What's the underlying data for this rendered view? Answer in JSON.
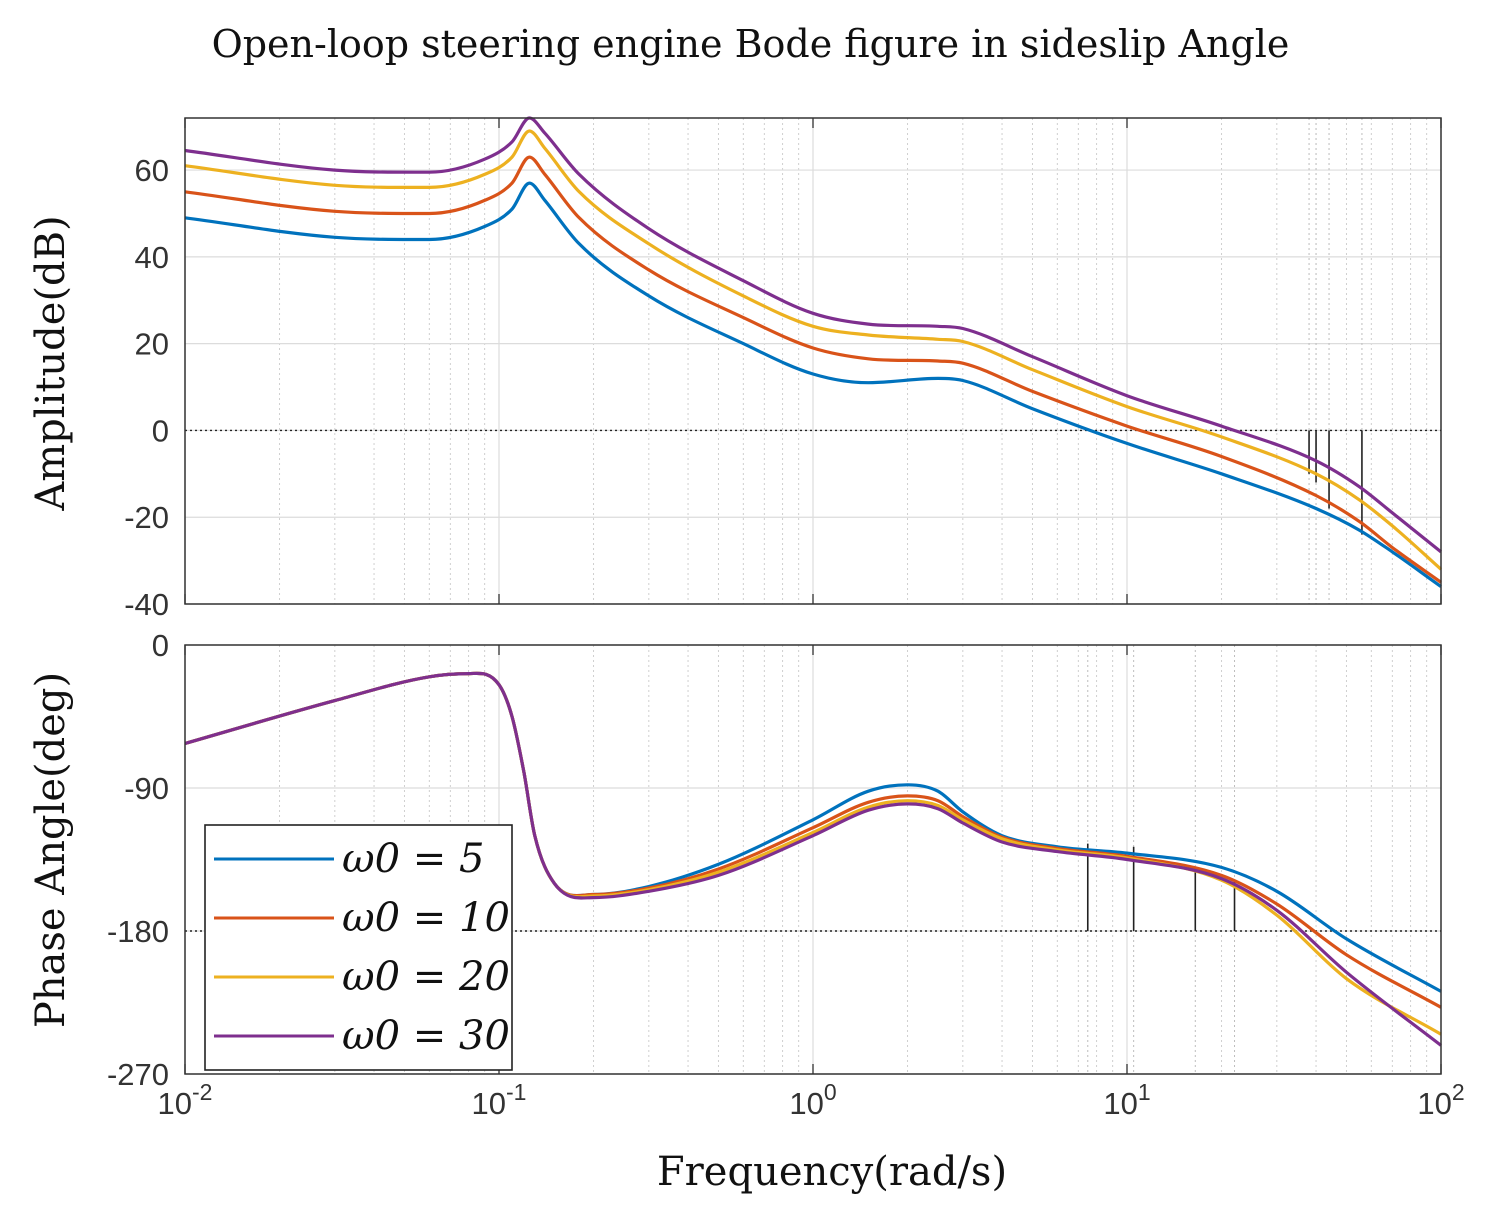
{
  "chart_data": {
    "type": "line",
    "title": "Open-loop steering engine Bode figure in sideslip Angle",
    "xlabel": "Frequency(rad/s)",
    "xscale": "log",
    "xlim": [
      0.01,
      100
    ],
    "x_ticks": [
      {
        "value": 0.01,
        "base": "10",
        "exp": "-2"
      },
      {
        "value": 0.1,
        "base": "10",
        "exp": "-1"
      },
      {
        "value": 1,
        "base": "10",
        "exp": "0"
      },
      {
        "value": 10,
        "base": "10",
        "exp": "1"
      },
      {
        "value": 100,
        "base": "10",
        "exp": "2"
      }
    ],
    "grid": true,
    "legend": {
      "location": "bottom-left of phase panel"
    },
    "colors": {
      "w5": "#0072BD",
      "w10": "#D95319",
      "w20": "#EDB120",
      "w30": "#7E2F8E"
    },
    "panels": [
      {
        "name": "magnitude",
        "ylabel": "Amplitude(dB)",
        "ylim": [
          -40,
          72
        ],
        "yticks": [
          "60",
          "40",
          "20",
          "0",
          "-20",
          "-40"
        ],
        "ytick_values": [
          60,
          40,
          20,
          0,
          -20,
          -40
        ],
        "reference_line": 0,
        "series": [
          {
            "name": "ω0 = 5",
            "color_key": "w5",
            "x": [
              0.01,
              0.03,
              0.06,
              0.09,
              0.11,
              0.125,
              0.14,
              0.18,
              0.3,
              0.6,
              1,
              1.5,
              2.5,
              3,
              5,
              10,
              20,
              40,
              55,
              70,
              100
            ],
            "y": [
              49,
              44.5,
              44,
              47,
              51,
              57,
              53,
              43,
              31,
              20,
              13,
              11,
              12,
              11.5,
              5,
              -3,
              -10,
              -18,
              -23,
              -28,
              -36
            ]
          },
          {
            "name": "ω0 = 10",
            "color_key": "w10",
            "x": [
              0.01,
              0.03,
              0.06,
              0.09,
              0.11,
              0.125,
              0.14,
              0.18,
              0.3,
              0.6,
              1,
              1.5,
              2.5,
              3,
              5,
              10,
              20,
              40,
              55,
              70,
              100
            ],
            "y": [
              55,
              50.5,
              50,
              53,
              57,
              63,
              59,
              49,
              37,
              26,
              19,
              16.5,
              16,
              15.5,
              9,
              1,
              -6,
              -15,
              -21,
              -27,
              -35
            ]
          },
          {
            "name": "ω0 = 20",
            "color_key": "w20",
            "x": [
              0.01,
              0.03,
              0.06,
              0.09,
              0.11,
              0.125,
              0.14,
              0.18,
              0.3,
              0.6,
              1,
              1.5,
              2.5,
              3,
              5,
              10,
              20,
              40,
              55,
              70,
              100
            ],
            "y": [
              61,
              56.5,
              56,
              59,
              63,
              69,
              65,
              55,
              43,
              31,
              24,
              22,
              21,
              20.5,
              14,
              5.5,
              -1.5,
              -10,
              -16,
              -22,
              -32
            ]
          },
          {
            "name": "ω0 = 30",
            "color_key": "w30",
            "x": [
              0.01,
              0.03,
              0.06,
              0.09,
              0.11,
              0.125,
              0.14,
              0.18,
              0.3,
              0.6,
              1,
              1.5,
              2.5,
              3,
              5,
              10,
              20,
              40,
              55,
              70,
              100
            ],
            "y": [
              64.5,
              60,
              59.5,
              62.5,
              66.5,
              72,
              68.5,
              59,
              46.5,
              34.5,
              27,
              24.5,
              24,
              23.5,
              17,
              8,
              1,
              -7,
              -13,
              -19,
              -28
            ]
          }
        ],
        "margin_markers": [
          {
            "x": 38,
            "y1": 0,
            "y2": -10
          },
          {
            "x": 40,
            "y1": 0,
            "y2": -12
          },
          {
            "x": 44,
            "y1": 0,
            "y2": -18
          },
          {
            "x": 56,
            "y1": 0,
            "y2": -24
          }
        ]
      },
      {
        "name": "phase",
        "ylabel": "Phase Angle(deg)",
        "ylim": [
          -270,
          0
        ],
        "yticks": [
          "0",
          "-90",
          "-180",
          "-270"
        ],
        "ytick_values": [
          0,
          -90,
          -180,
          -270
        ],
        "reference_line": -180,
        "series": [
          {
            "name": "ω0 = 5",
            "color_key": "w5",
            "x": [
              0.01,
              0.03,
              0.06,
              0.08,
              0.1,
              0.11,
              0.12,
              0.13,
              0.15,
              0.2,
              0.3,
              0.5,
              1,
              1.5,
              2,
              2.5,
              3,
              4,
              6,
              10,
              20,
              30,
              50,
              100
            ],
            "y": [
              -62,
              -35,
              -20,
              -18,
              -25,
              -45,
              -80,
              -120,
              -150,
              -157,
              -152,
              -138,
              -110,
              -92,
              -88,
              -92,
              -105,
              -120,
              -127,
              -131,
              -140,
              -155,
              -185,
              -218
            ]
          },
          {
            "name": "ω0 = 10",
            "color_key": "w10",
            "x": [
              0.01,
              0.03,
              0.06,
              0.08,
              0.1,
              0.11,
              0.12,
              0.13,
              0.15,
              0.2,
              0.3,
              0.5,
              1,
              1.5,
              2,
              2.5,
              3,
              4,
              6,
              10,
              20,
              30,
              50,
              100
            ],
            "y": [
              -62,
              -35,
              -20,
              -18,
              -25,
              -45,
              -80,
              -120,
              -150,
              -157,
              -153,
              -141,
              -115,
              -99,
              -95,
              -98,
              -108,
              -121,
              -128,
              -133,
              -145,
              -163,
              -195,
              -228
            ]
          },
          {
            "name": "ω0 = 20",
            "color_key": "w20",
            "x": [
              0.01,
              0.03,
              0.06,
              0.08,
              0.1,
              0.11,
              0.12,
              0.13,
              0.15,
              0.2,
              0.3,
              0.5,
              1,
              1.5,
              2,
              2.5,
              3,
              4,
              6,
              10,
              20,
              30,
              50,
              100
            ],
            "y": [
              -62,
              -35,
              -20,
              -18,
              -25,
              -45,
              -80,
              -120,
              -150,
              -158,
              -154,
              -143,
              -118,
              -102,
              -98,
              -101,
              -110,
              -122,
              -129,
              -134,
              -148,
              -170,
              -210,
              -245
            ]
          },
          {
            "name": "ω0 = 30",
            "color_key": "w30",
            "x": [
              0.01,
              0.03,
              0.06,
              0.08,
              0.1,
              0.11,
              0.12,
              0.13,
              0.15,
              0.2,
              0.3,
              0.5,
              1,
              1.5,
              2,
              2.5,
              3,
              4,
              6,
              10,
              20,
              30,
              50,
              100
            ],
            "y": [
              -62,
              -35,
              -20,
              -18,
              -25,
              -45,
              -80,
              -120,
              -150,
              -159,
              -155,
              -145,
              -120,
              -104,
              -100,
              -103,
              -112,
              -124,
              -130,
              -135,
              -147,
              -167,
              -206,
              -252
            ]
          }
        ],
        "margin_markers": [
          {
            "x": 7.5,
            "y1": -180,
            "y2": -125
          },
          {
            "x": 10.5,
            "y1": -180,
            "y2": -127
          },
          {
            "x": 16.5,
            "y1": -180,
            "y2": -140
          },
          {
            "x": 22,
            "y1": -180,
            "y2": -148
          }
        ]
      }
    ]
  }
}
